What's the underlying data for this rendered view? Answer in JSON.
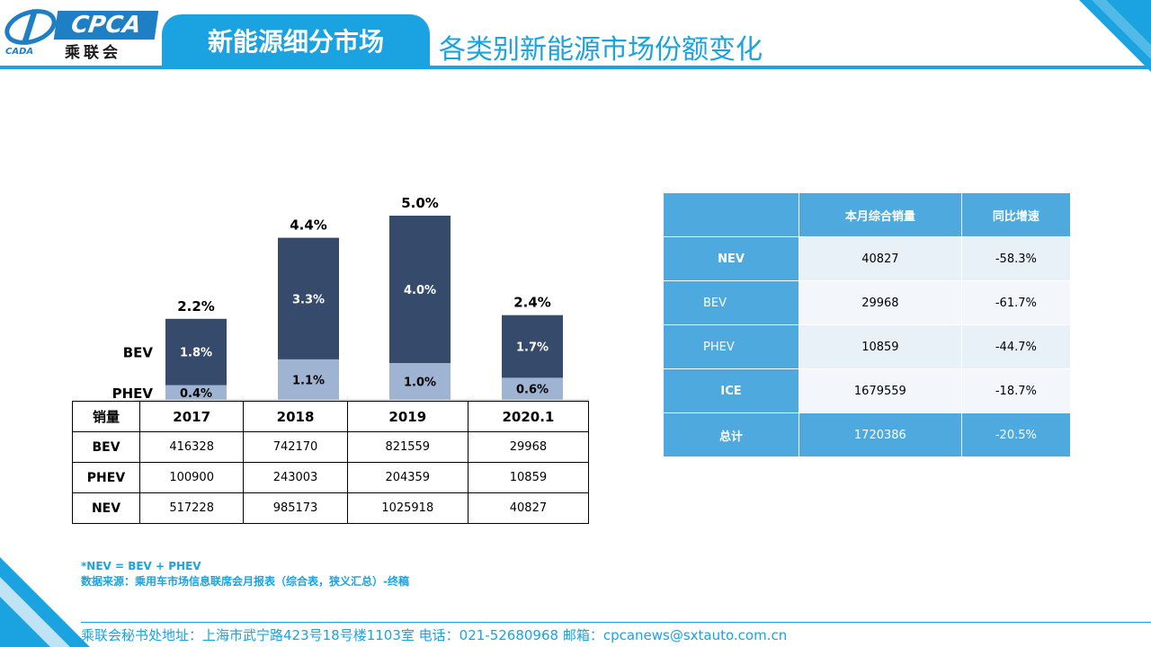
{
  "logo": {
    "brand": "CPCA",
    "cn": "乘联会",
    "en": "CADA"
  },
  "header": {
    "section": "新能源细分市场",
    "title": "各类别新能源市场份额变化"
  },
  "chart_data": {
    "type": "bar",
    "stacked": true,
    "categories": [
      "2017",
      "2018",
      "2019",
      "2020.1"
    ],
    "series": [
      {
        "name": "PHEV",
        "values": [
          0.4,
          1.1,
          1.0,
          0.6
        ],
        "labels": [
          "0.4%",
          "1.1%",
          "1.0%",
          "0.6%"
        ],
        "color": "#9fb3d3"
      },
      {
        "name": "BEV",
        "values": [
          1.8,
          3.3,
          4.0,
          1.7
        ],
        "labels": [
          "1.8%",
          "3.3%",
          "4.0%",
          "1.7%"
        ],
        "color": "#364b6c"
      }
    ],
    "totals": [
      "2.2%",
      "4.4%",
      "5.0%",
      "2.4%"
    ],
    "ylim": [
      0,
      5.6
    ]
  },
  "sales_table": {
    "header": [
      "销量",
      "2017",
      "2018",
      "2019",
      "2020.1"
    ],
    "rows": [
      {
        "label": "BEV",
        "values": [
          "416328",
          "742170",
          "821559",
          "29968"
        ]
      },
      {
        "label": "PHEV",
        "values": [
          "100900",
          "243003",
          "204359",
          "10859"
        ]
      },
      {
        "label": "NEV",
        "values": [
          "517228",
          "985173",
          "1025918",
          "40827"
        ]
      }
    ]
  },
  "summary_table": {
    "header": [
      "",
      "本月综合销量",
      "同比增速"
    ],
    "rows": [
      {
        "label": "NEV",
        "sales": "40827",
        "growth": "-58.3%"
      },
      {
        "label": "BEV",
        "sales": "29968",
        "growth": "-61.7%"
      },
      {
        "label": "PHEV",
        "sales": "10859",
        "growth": "-44.7%"
      },
      {
        "label": "ICE",
        "sales": "1679559",
        "growth": "-18.7%"
      },
      {
        "label": "总计",
        "sales": "1720386",
        "growth": "-20.5%"
      }
    ]
  },
  "notes": {
    "formula": "*NEV = BEV + PHEV",
    "source": "数据来源：乘用车市场信息联席会月报表（综合表，狭义汇总）-终稿"
  },
  "footer": {
    "text": "乘联会秘书处地址：上海市武宁路423号18号楼1103室  电话：021-52680968   邮箱：cpcanews@sxtauto.com.cn"
  },
  "colors": {
    "accent": "#1aa3e0",
    "bev": "#364b6c",
    "phev": "#9fb3d3",
    "table_blue": "#4eaade"
  }
}
